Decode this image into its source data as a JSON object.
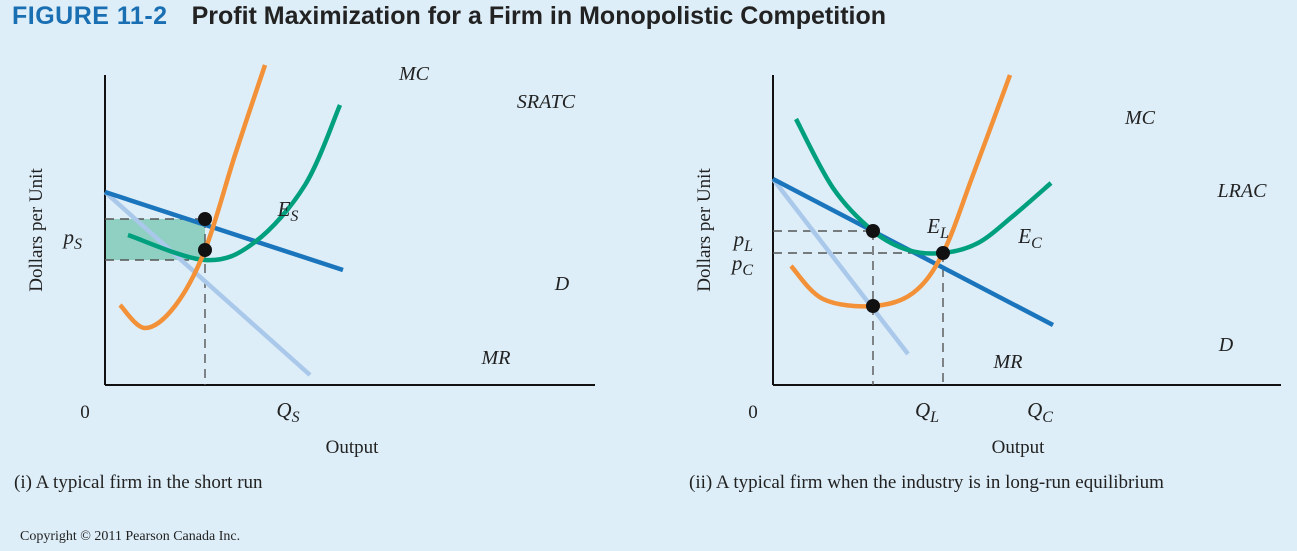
{
  "figure": {
    "number": "FIGURE 11-2",
    "title": "Profit Maximization for a Firm in Monopolistic Competition"
  },
  "copyright": "Copyright © 2011 Pearson Canada Inc.",
  "colors": {
    "mc": "#f29138",
    "atc": "#00a07e",
    "demand": "#1b75bc",
    "mr": "#a9c8ea",
    "profit_fill": "#8fd0c2",
    "background": "#ddeef8"
  },
  "chart_data": [
    {
      "type": "line",
      "caption": "(i) A typical firm in the short run",
      "xlabel": "Output",
      "ylabel": "Dollars per Unit",
      "origin_label": "0",
      "ticks": {
        "x": [
          {
            "main": "Q",
            "sub": "S"
          }
        ],
        "y": [
          {
            "main": "p",
            "sub": "S"
          }
        ]
      },
      "points": [
        {
          "id": "ES",
          "main": "E",
          "sub": "S",
          "x": 100,
          "y": 166
        },
        {
          "id": "mr_mc",
          "main": "",
          "sub": "",
          "x": 100,
          "y": 135
        }
      ],
      "shaded_region": {
        "name": "profit",
        "x": [
          0,
          100
        ],
        "y": [
          125,
          166
        ]
      },
      "series": [
        {
          "name": "MC",
          "color_key": "mc",
          "label": "MC",
          "points": [
            [
              15,
              80
            ],
            [
              40,
              57
            ],
            [
              70,
              79
            ],
            [
              100,
              135
            ],
            [
              130,
              230
            ],
            [
              160,
              320
            ]
          ]
        },
        {
          "name": "SRATC",
          "color_key": "atc",
          "label": "SRATC",
          "points": [
            [
              23,
              150
            ],
            [
              100,
              125
            ],
            [
              150,
              143
            ],
            [
              200,
              200
            ],
            [
              235,
              280
            ]
          ]
        },
        {
          "name": "D",
          "color_key": "demand",
          "label": "D",
          "points": [
            [
              0,
              193
            ],
            [
              238,
              115
            ]
          ]
        },
        {
          "name": "MR",
          "color_key": "mr",
          "label": "MR",
          "points": [
            [
              0,
              193
            ],
            [
              205,
              10
            ]
          ]
        }
      ]
    },
    {
      "type": "line",
      "caption": "(ii) A typical firm when the industry is in long-run equilibrium",
      "xlabel": "Output",
      "ylabel": "Dollars per Unit",
      "origin_label": "0",
      "ticks": {
        "x": [
          {
            "main": "Q",
            "sub": "L"
          },
          {
            "main": "Q",
            "sub": "C"
          }
        ],
        "y": [
          {
            "main": "p",
            "sub": "L"
          },
          {
            "main": "p",
            "sub": "C"
          }
        ]
      },
      "points": [
        {
          "id": "EL",
          "main": "E",
          "sub": "L",
          "x": 100,
          "y": 154
        },
        {
          "id": "EC",
          "main": "E",
          "sub": "C",
          "x": 170,
          "y": 132
        },
        {
          "id": "min_mc",
          "main": "",
          "sub": "",
          "x": 100,
          "y": 79
        }
      ],
      "series": [
        {
          "name": "MC",
          "color_key": "mc",
          "label": "MC",
          "points": [
            [
              18,
              119
            ],
            [
              50,
              86
            ],
            [
              100,
              79
            ],
            [
              140,
              92
            ],
            [
              170,
              132
            ],
            [
              200,
              210
            ],
            [
              237,
              310
            ]
          ]
        },
        {
          "name": "LRAC",
          "color_key": "atc",
          "label": "LRAC",
          "points": [
            [
              23,
              266
            ],
            [
              60,
              197
            ],
            [
              100,
              154
            ],
            [
              135,
              135
            ],
            [
              170,
              132
            ],
            [
              205,
              142
            ],
            [
              240,
              169
            ],
            [
              278,
              202
            ]
          ]
        },
        {
          "name": "D",
          "color_key": "demand",
          "label": "D",
          "points": [
            [
              0,
              206
            ],
            [
              280,
              60
            ]
          ]
        },
        {
          "name": "MR",
          "color_key": "mr",
          "label": "MR",
          "points": [
            [
              0,
              206
            ],
            [
              135,
              31
            ]
          ]
        }
      ]
    }
  ]
}
